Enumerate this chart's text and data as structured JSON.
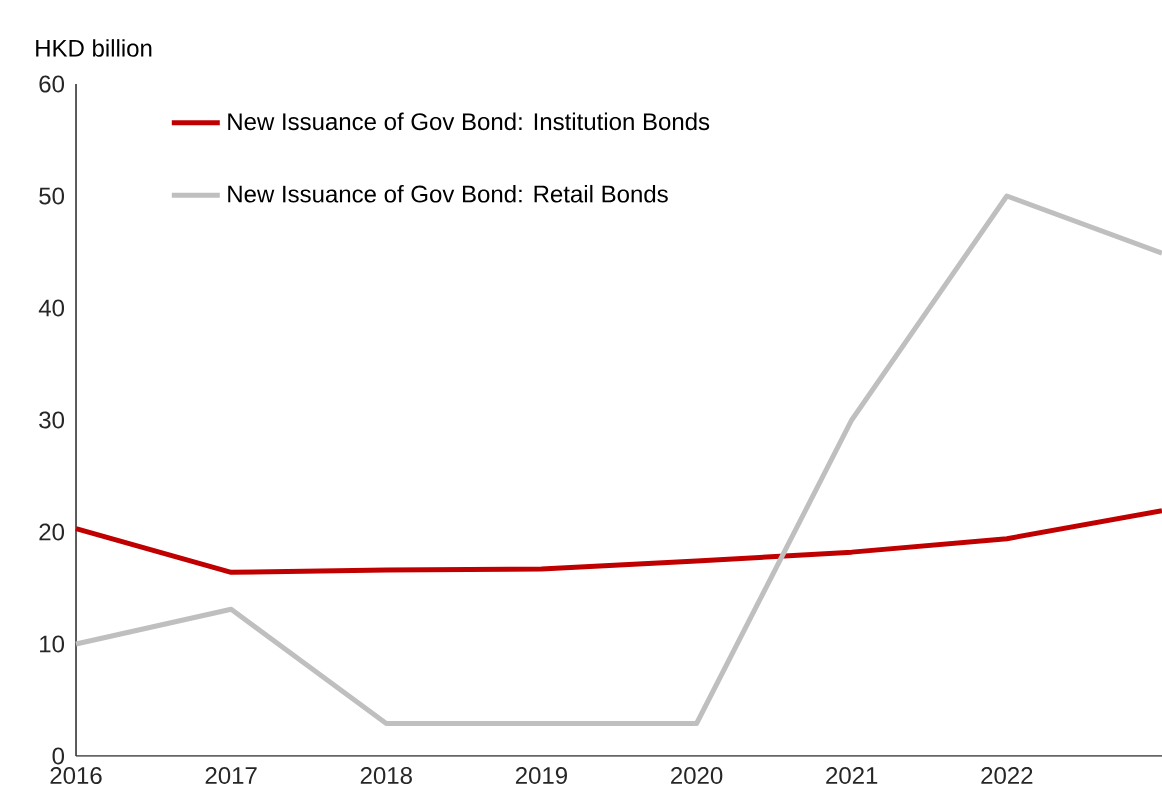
{
  "chart_data": {
    "type": "line",
    "ylabel": "HKD billion",
    "x": [
      2016,
      2017,
      2018,
      2019,
      2020,
      2021,
      2022,
      2023
    ],
    "series": [
      {
        "name": "New Issuance of Gov Bond: Institution Bonds",
        "color": "#c00000",
        "values": [
          20.3,
          16.4,
          16.6,
          16.7,
          17.4,
          18.2,
          19.4,
          21.9
        ]
      },
      {
        "name": "New Issuance of Gov Bond: Retail Bonds",
        "color": "#bfbfbf",
        "values": [
          10,
          13.1,
          2.9,
          2.9,
          2.9,
          30,
          50,
          44.9
        ]
      }
    ],
    "xlim": [
      2016,
      2023
    ],
    "xticks": [
      2016,
      2017,
      2018,
      2019,
      2020,
      2021,
      2022
    ],
    "ylim": [
      0,
      60
    ],
    "yticks": [
      0,
      10,
      20,
      30,
      40,
      50,
      60
    ],
    "grid": false,
    "legend": "top left",
    "marker": "none",
    "line_style": "solid"
  }
}
